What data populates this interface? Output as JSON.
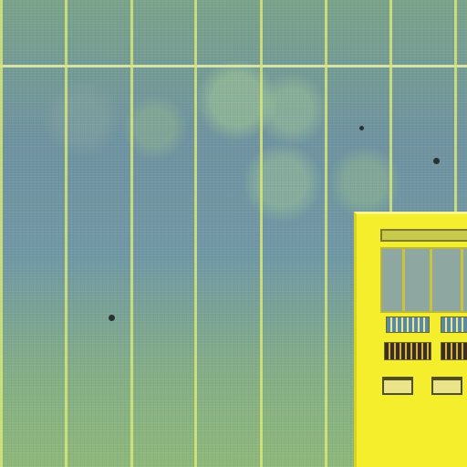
{
  "scene": {
    "kind": "aerial-photo",
    "colors": {
      "field": "#7098a4",
      "grid_lines": "#d7e678",
      "building": "#f4ee2c"
    }
  }
}
